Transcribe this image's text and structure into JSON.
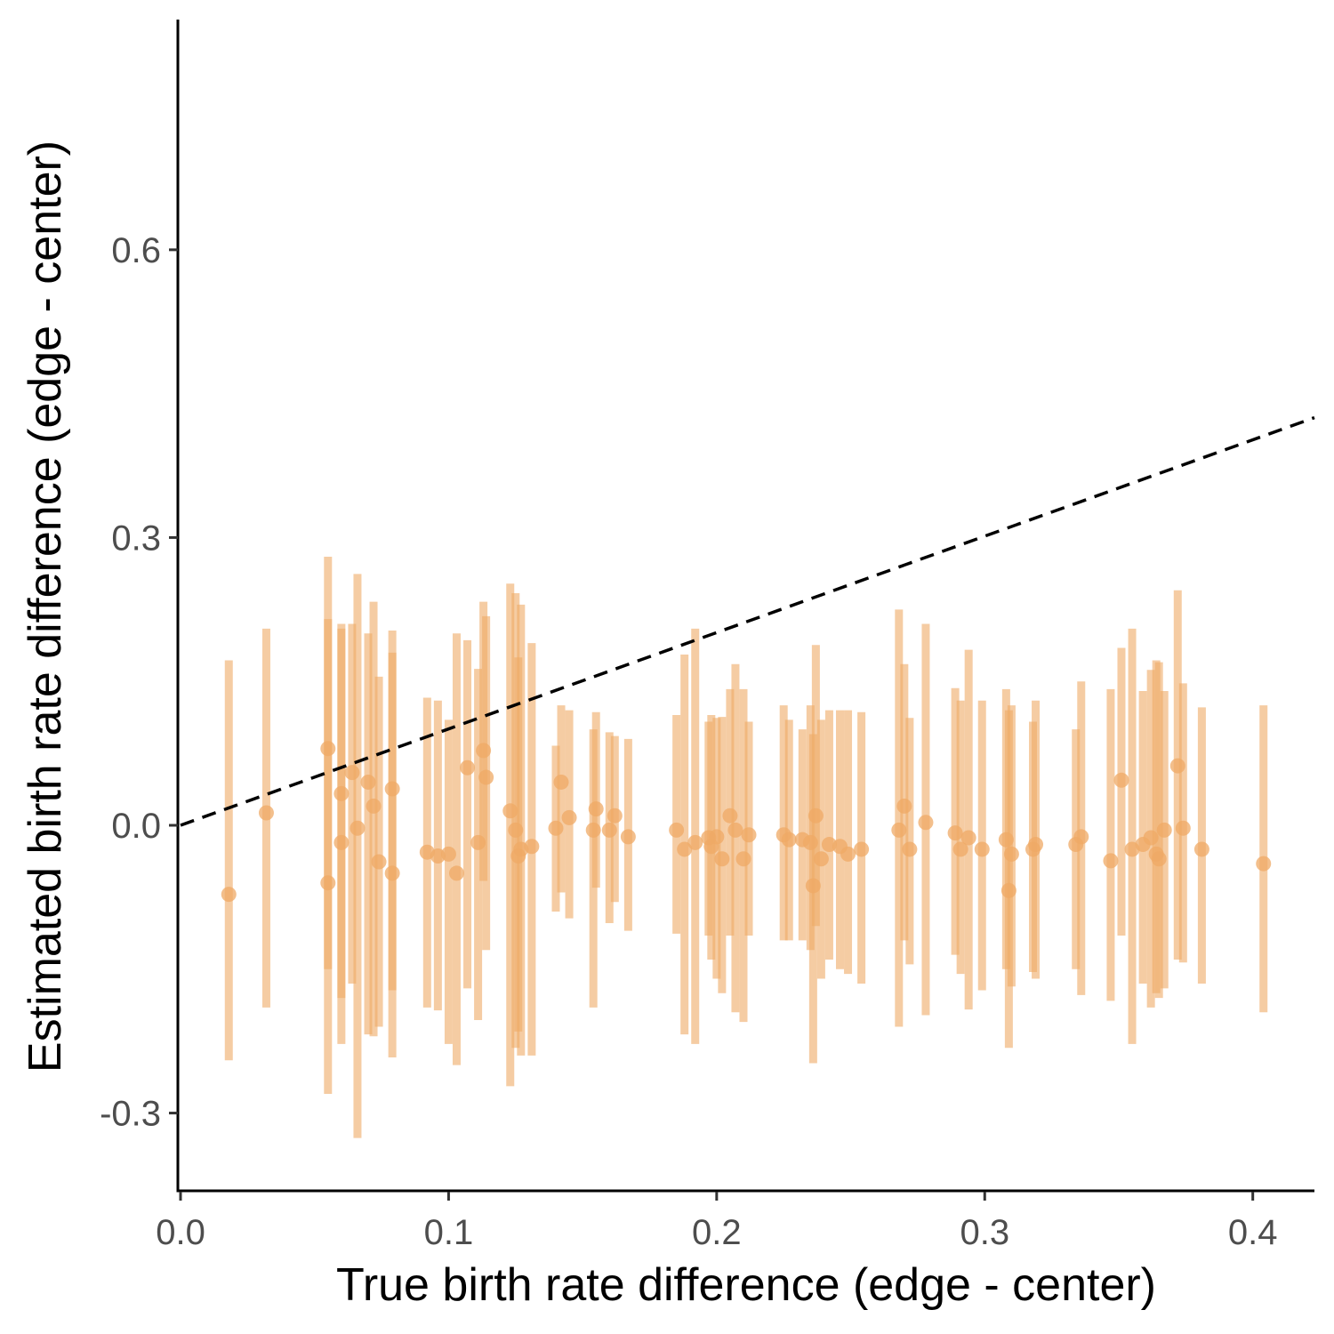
{
  "chart_data": {
    "type": "scatter",
    "title": "",
    "xlabel": "True birth rate difference (edge - center)",
    "ylabel": "Estimated birth rate difference (edge - center)",
    "xlim": [
      -0.001,
      0.423
    ],
    "ylim": [
      -0.382,
      0.84
    ],
    "x_ticks": [
      {
        "value": 0.0,
        "label": "0.0"
      },
      {
        "value": 0.1,
        "label": "0.1"
      },
      {
        "value": 0.2,
        "label": "0.2"
      },
      {
        "value": 0.3,
        "label": "0.3"
      },
      {
        "value": 0.4,
        "label": "0.4"
      }
    ],
    "y_ticks": [
      {
        "value": -0.3,
        "label": "-0.3"
      },
      {
        "value": 0.0,
        "label": "0.0"
      },
      {
        "value": 0.3,
        "label": "0.3"
      },
      {
        "value": 0.6,
        "label": "0.6"
      }
    ],
    "grid": false,
    "legend": "none",
    "point_color": "#efaa66",
    "reference_line": {
      "style": "dashed",
      "color": "#000000",
      "x": [
        0.0,
        0.423
      ],
      "y": [
        0.0,
        0.425
      ]
    },
    "points": [
      {
        "x": 0.018,
        "y": -0.072,
        "lo": -0.245,
        "hi": 0.172
      },
      {
        "x": 0.032,
        "y": 0.013,
        "lo": -0.19,
        "hi": 0.205
      },
      {
        "x": 0.055,
        "y": 0.08,
        "lo": -0.15,
        "hi": 0.28
      },
      {
        "x": 0.055,
        "y": -0.06,
        "lo": -0.28,
        "hi": 0.215
      },
      {
        "x": 0.06,
        "y": 0.033,
        "lo": -0.18,
        "hi": 0.21
      },
      {
        "x": 0.06,
        "y": -0.018,
        "lo": -0.228,
        "hi": 0.205
      },
      {
        "x": 0.064,
        "y": 0.055,
        "lo": -0.165,
        "hi": 0.21
      },
      {
        "x": 0.066,
        "y": -0.003,
        "lo": -0.326,
        "hi": 0.262
      },
      {
        "x": 0.07,
        "y": 0.045,
        "lo": -0.218,
        "hi": 0.2
      },
      {
        "x": 0.072,
        "y": 0.02,
        "lo": -0.22,
        "hi": 0.233
      },
      {
        "x": 0.074,
        "y": -0.038,
        "lo": -0.21,
        "hi": 0.155
      },
      {
        "x": 0.079,
        "y": 0.038,
        "lo": -0.242,
        "hi": 0.18
      },
      {
        "x": 0.079,
        "y": -0.05,
        "lo": -0.172,
        "hi": 0.203
      },
      {
        "x": 0.092,
        "y": -0.028,
        "lo": -0.19,
        "hi": 0.133
      },
      {
        "x": 0.096,
        "y": -0.032,
        "lo": -0.193,
        "hi": 0.13
      },
      {
        "x": 0.1,
        "y": -0.03,
        "lo": -0.228,
        "hi": 0.11
      },
      {
        "x": 0.103,
        "y": -0.05,
        "lo": -0.25,
        "hi": 0.2
      },
      {
        "x": 0.107,
        "y": 0.06,
        "lo": -0.17,
        "hi": 0.193
      },
      {
        "x": 0.111,
        "y": -0.018,
        "lo": -0.203,
        "hi": 0.163
      },
      {
        "x": 0.113,
        "y": 0.078,
        "lo": -0.058,
        "hi": 0.233
      },
      {
        "x": 0.114,
        "y": 0.05,
        "lo": -0.13,
        "hi": 0.218
      },
      {
        "x": 0.123,
        "y": 0.015,
        "lo": -0.272,
        "hi": 0.252
      },
      {
        "x": 0.125,
        "y": -0.005,
        "lo": -0.232,
        "hi": 0.242
      },
      {
        "x": 0.126,
        "y": -0.032,
        "lo": -0.215,
        "hi": 0.175
      },
      {
        "x": 0.127,
        "y": -0.025,
        "lo": -0.24,
        "hi": 0.23
      },
      {
        "x": 0.131,
        "y": -0.022,
        "lo": -0.24,
        "hi": 0.19
      },
      {
        "x": 0.14,
        "y": -0.003,
        "lo": -0.09,
        "hi": 0.083
      },
      {
        "x": 0.142,
        "y": 0.045,
        "lo": -0.07,
        "hi": 0.125
      },
      {
        "x": 0.145,
        "y": 0.008,
        "lo": -0.097,
        "hi": 0.12
      },
      {
        "x": 0.154,
        "y": -0.005,
        "lo": -0.19,
        "hi": 0.1
      },
      {
        "x": 0.155,
        "y": 0.017,
        "lo": -0.065,
        "hi": 0.118
      },
      {
        "x": 0.16,
        "y": -0.005,
        "lo": -0.102,
        "hi": 0.097
      },
      {
        "x": 0.162,
        "y": 0.01,
        "lo": -0.08,
        "hi": 0.093
      },
      {
        "x": 0.167,
        "y": -0.012,
        "lo": -0.11,
        "hi": 0.09
      },
      {
        "x": 0.185,
        "y": -0.005,
        "lo": -0.113,
        "hi": 0.115
      },
      {
        "x": 0.188,
        "y": -0.025,
        "lo": -0.218,
        "hi": 0.178
      },
      {
        "x": 0.192,
        "y": -0.018,
        "lo": -0.228,
        "hi": 0.205
      },
      {
        "x": 0.197,
        "y": -0.013,
        "lo": -0.115,
        "hi": 0.108
      },
      {
        "x": 0.198,
        "y": -0.022,
        "lo": -0.14,
        "hi": 0.115
      },
      {
        "x": 0.2,
        "y": -0.012,
        "lo": -0.16,
        "hi": 0.112
      },
      {
        "x": 0.202,
        "y": -0.035,
        "lo": -0.175,
        "hi": 0.113
      },
      {
        "x": 0.205,
        "y": 0.01,
        "lo": -0.115,
        "hi": 0.142
      },
      {
        "x": 0.207,
        "y": -0.005,
        "lo": -0.195,
        "hi": 0.168
      },
      {
        "x": 0.21,
        "y": -0.035,
        "lo": -0.205,
        "hi": 0.142
      },
      {
        "x": 0.212,
        "y": -0.01,
        "lo": -0.115,
        "hi": 0.108
      },
      {
        "x": 0.225,
        "y": -0.01,
        "lo": -0.12,
        "hi": 0.125
      },
      {
        "x": 0.227,
        "y": -0.015,
        "lo": -0.12,
        "hi": 0.11
      },
      {
        "x": 0.232,
        "y": -0.015,
        "lo": -0.12,
        "hi": 0.1
      },
      {
        "x": 0.235,
        "y": -0.018,
        "lo": -0.13,
        "hi": 0.125
      },
      {
        "x": 0.236,
        "y": -0.063,
        "lo": -0.248,
        "hi": 0.095
      },
      {
        "x": 0.237,
        "y": 0.01,
        "lo": -0.105,
        "hi": 0.188
      },
      {
        "x": 0.239,
        "y": -0.035,
        "lo": -0.16,
        "hi": 0.11
      },
      {
        "x": 0.242,
        "y": -0.02,
        "lo": -0.14,
        "hi": 0.12
      },
      {
        "x": 0.246,
        "y": -0.022,
        "lo": -0.15,
        "hi": 0.12
      },
      {
        "x": 0.249,
        "y": -0.03,
        "lo": -0.155,
        "hi": 0.12
      },
      {
        "x": 0.254,
        "y": -0.025,
        "lo": -0.165,
        "hi": 0.118
      },
      {
        "x": 0.268,
        "y": -0.005,
        "lo": -0.21,
        "hi": 0.225
      },
      {
        "x": 0.27,
        "y": 0.02,
        "lo": -0.12,
        "hi": 0.168
      },
      {
        "x": 0.272,
        "y": -0.025,
        "lo": -0.145,
        "hi": 0.112
      },
      {
        "x": 0.278,
        "y": 0.003,
        "lo": -0.198,
        "hi": 0.21
      },
      {
        "x": 0.289,
        "y": -0.008,
        "lo": -0.135,
        "hi": 0.143
      },
      {
        "x": 0.291,
        "y": -0.025,
        "lo": -0.155,
        "hi": 0.13
      },
      {
        "x": 0.294,
        "y": -0.013,
        "lo": -0.192,
        "hi": 0.183
      },
      {
        "x": 0.299,
        "y": -0.025,
        "lo": -0.172,
        "hi": 0.13
      },
      {
        "x": 0.308,
        "y": -0.015,
        "lo": -0.15,
        "hi": 0.142
      },
      {
        "x": 0.309,
        "y": -0.068,
        "lo": -0.232,
        "hi": 0.12
      },
      {
        "x": 0.31,
        "y": -0.03,
        "lo": -0.168,
        "hi": 0.125
      },
      {
        "x": 0.318,
        "y": -0.025,
        "lo": -0.153,
        "hi": 0.108
      },
      {
        "x": 0.319,
        "y": -0.02,
        "lo": -0.16,
        "hi": 0.13
      },
      {
        "x": 0.334,
        "y": -0.02,
        "lo": -0.15,
        "hi": 0.1
      },
      {
        "x": 0.336,
        "y": -0.012,
        "lo": -0.177,
        "hi": 0.15
      },
      {
        "x": 0.347,
        "y": -0.037,
        "lo": -0.183,
        "hi": 0.142
      },
      {
        "x": 0.351,
        "y": 0.047,
        "lo": -0.115,
        "hi": 0.185
      },
      {
        "x": 0.355,
        "y": -0.025,
        "lo": -0.228,
        "hi": 0.205
      },
      {
        "x": 0.359,
        "y": -0.02,
        "lo": -0.165,
        "hi": 0.14
      },
      {
        "x": 0.362,
        "y": -0.013,
        "lo": -0.19,
        "hi": 0.162
      },
      {
        "x": 0.364,
        "y": -0.03,
        "lo": -0.175,
        "hi": 0.172
      },
      {
        "x": 0.365,
        "y": -0.035,
        "lo": -0.18,
        "hi": 0.17
      },
      {
        "x": 0.367,
        "y": -0.005,
        "lo": -0.17,
        "hi": 0.14
      },
      {
        "x": 0.372,
        "y": 0.062,
        "lo": -0.14,
        "hi": 0.245
      },
      {
        "x": 0.374,
        "y": -0.003,
        "lo": -0.143,
        "hi": 0.148
      },
      {
        "x": 0.381,
        "y": -0.025,
        "lo": -0.165,
        "hi": 0.123
      },
      {
        "x": 0.404,
        "y": -0.04,
        "lo": -0.195,
        "hi": 0.125
      }
    ]
  }
}
